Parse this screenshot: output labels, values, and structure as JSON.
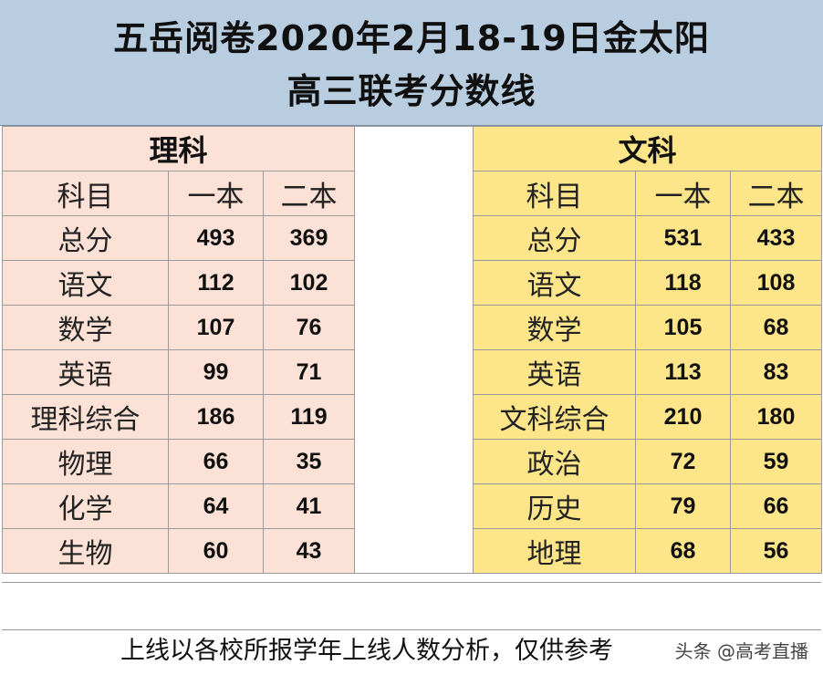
{
  "title": {
    "line1": "五岳阅卷2020年2月18-19日金太阳",
    "line2": "高三联考分数线"
  },
  "science": {
    "header": "理科",
    "col_subject": "科目",
    "col_first": "一本",
    "col_second": "二本",
    "rows": [
      {
        "subject": "总分",
        "first": "493",
        "second": "369"
      },
      {
        "subject": "语文",
        "first": "112",
        "second": "102"
      },
      {
        "subject": "数学",
        "first": "107",
        "second": "76"
      },
      {
        "subject": "英语",
        "first": "99",
        "second": "71"
      },
      {
        "subject": "理科综合",
        "first": "186",
        "second": "119"
      },
      {
        "subject": "物理",
        "first": "66",
        "second": "35"
      },
      {
        "subject": "化学",
        "first": "64",
        "second": "41"
      },
      {
        "subject": "生物",
        "first": "60",
        "second": "43"
      }
    ]
  },
  "arts": {
    "header": "文科",
    "col_subject": "科目",
    "col_first": "一本",
    "col_second": "二本",
    "rows": [
      {
        "subject": "总分",
        "first": "531",
        "second": "433"
      },
      {
        "subject": "语文",
        "first": "118",
        "second": "108"
      },
      {
        "subject": "数学",
        "first": "105",
        "second": "68"
      },
      {
        "subject": "英语",
        "first": "113",
        "second": "83"
      },
      {
        "subject": "文科综合",
        "first": "210",
        "second": "180"
      },
      {
        "subject": "政治",
        "first": "72",
        "second": "59"
      },
      {
        "subject": "历史",
        "first": "79",
        "second": "66"
      },
      {
        "subject": "地理",
        "first": "68",
        "second": "56"
      }
    ]
  },
  "footer": {
    "note": "上线以各校所报学年上线人数分析，仅供参考",
    "watermark": "头条 @高考直播"
  }
}
